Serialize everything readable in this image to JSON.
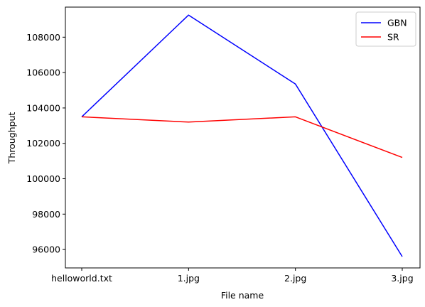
{
  "chart_data": {
    "type": "line",
    "title": "",
    "xlabel": "File name",
    "ylabel": "Throughput",
    "categories": [
      "helloworld.txt",
      "1.jpg",
      "2.jpg",
      "3.jpg"
    ],
    "series": [
      {
        "name": "GBN",
        "color": "#0000ff",
        "values": [
          103500,
          109250,
          105350,
          95600
        ]
      },
      {
        "name": "SR",
        "color": "#ff0000",
        "values": [
          103500,
          103200,
          103500,
          101200
        ]
      }
    ],
    "ylim": [
      94960,
      109700
    ],
    "yticks": [
      96000,
      98000,
      100000,
      102000,
      104000,
      106000,
      108000
    ],
    "ytick_labels": [
      "96000",
      "98000",
      "100000",
      "102000",
      "104000",
      "106000",
      "108000"
    ],
    "grid": false,
    "legend_position": "upper right"
  }
}
